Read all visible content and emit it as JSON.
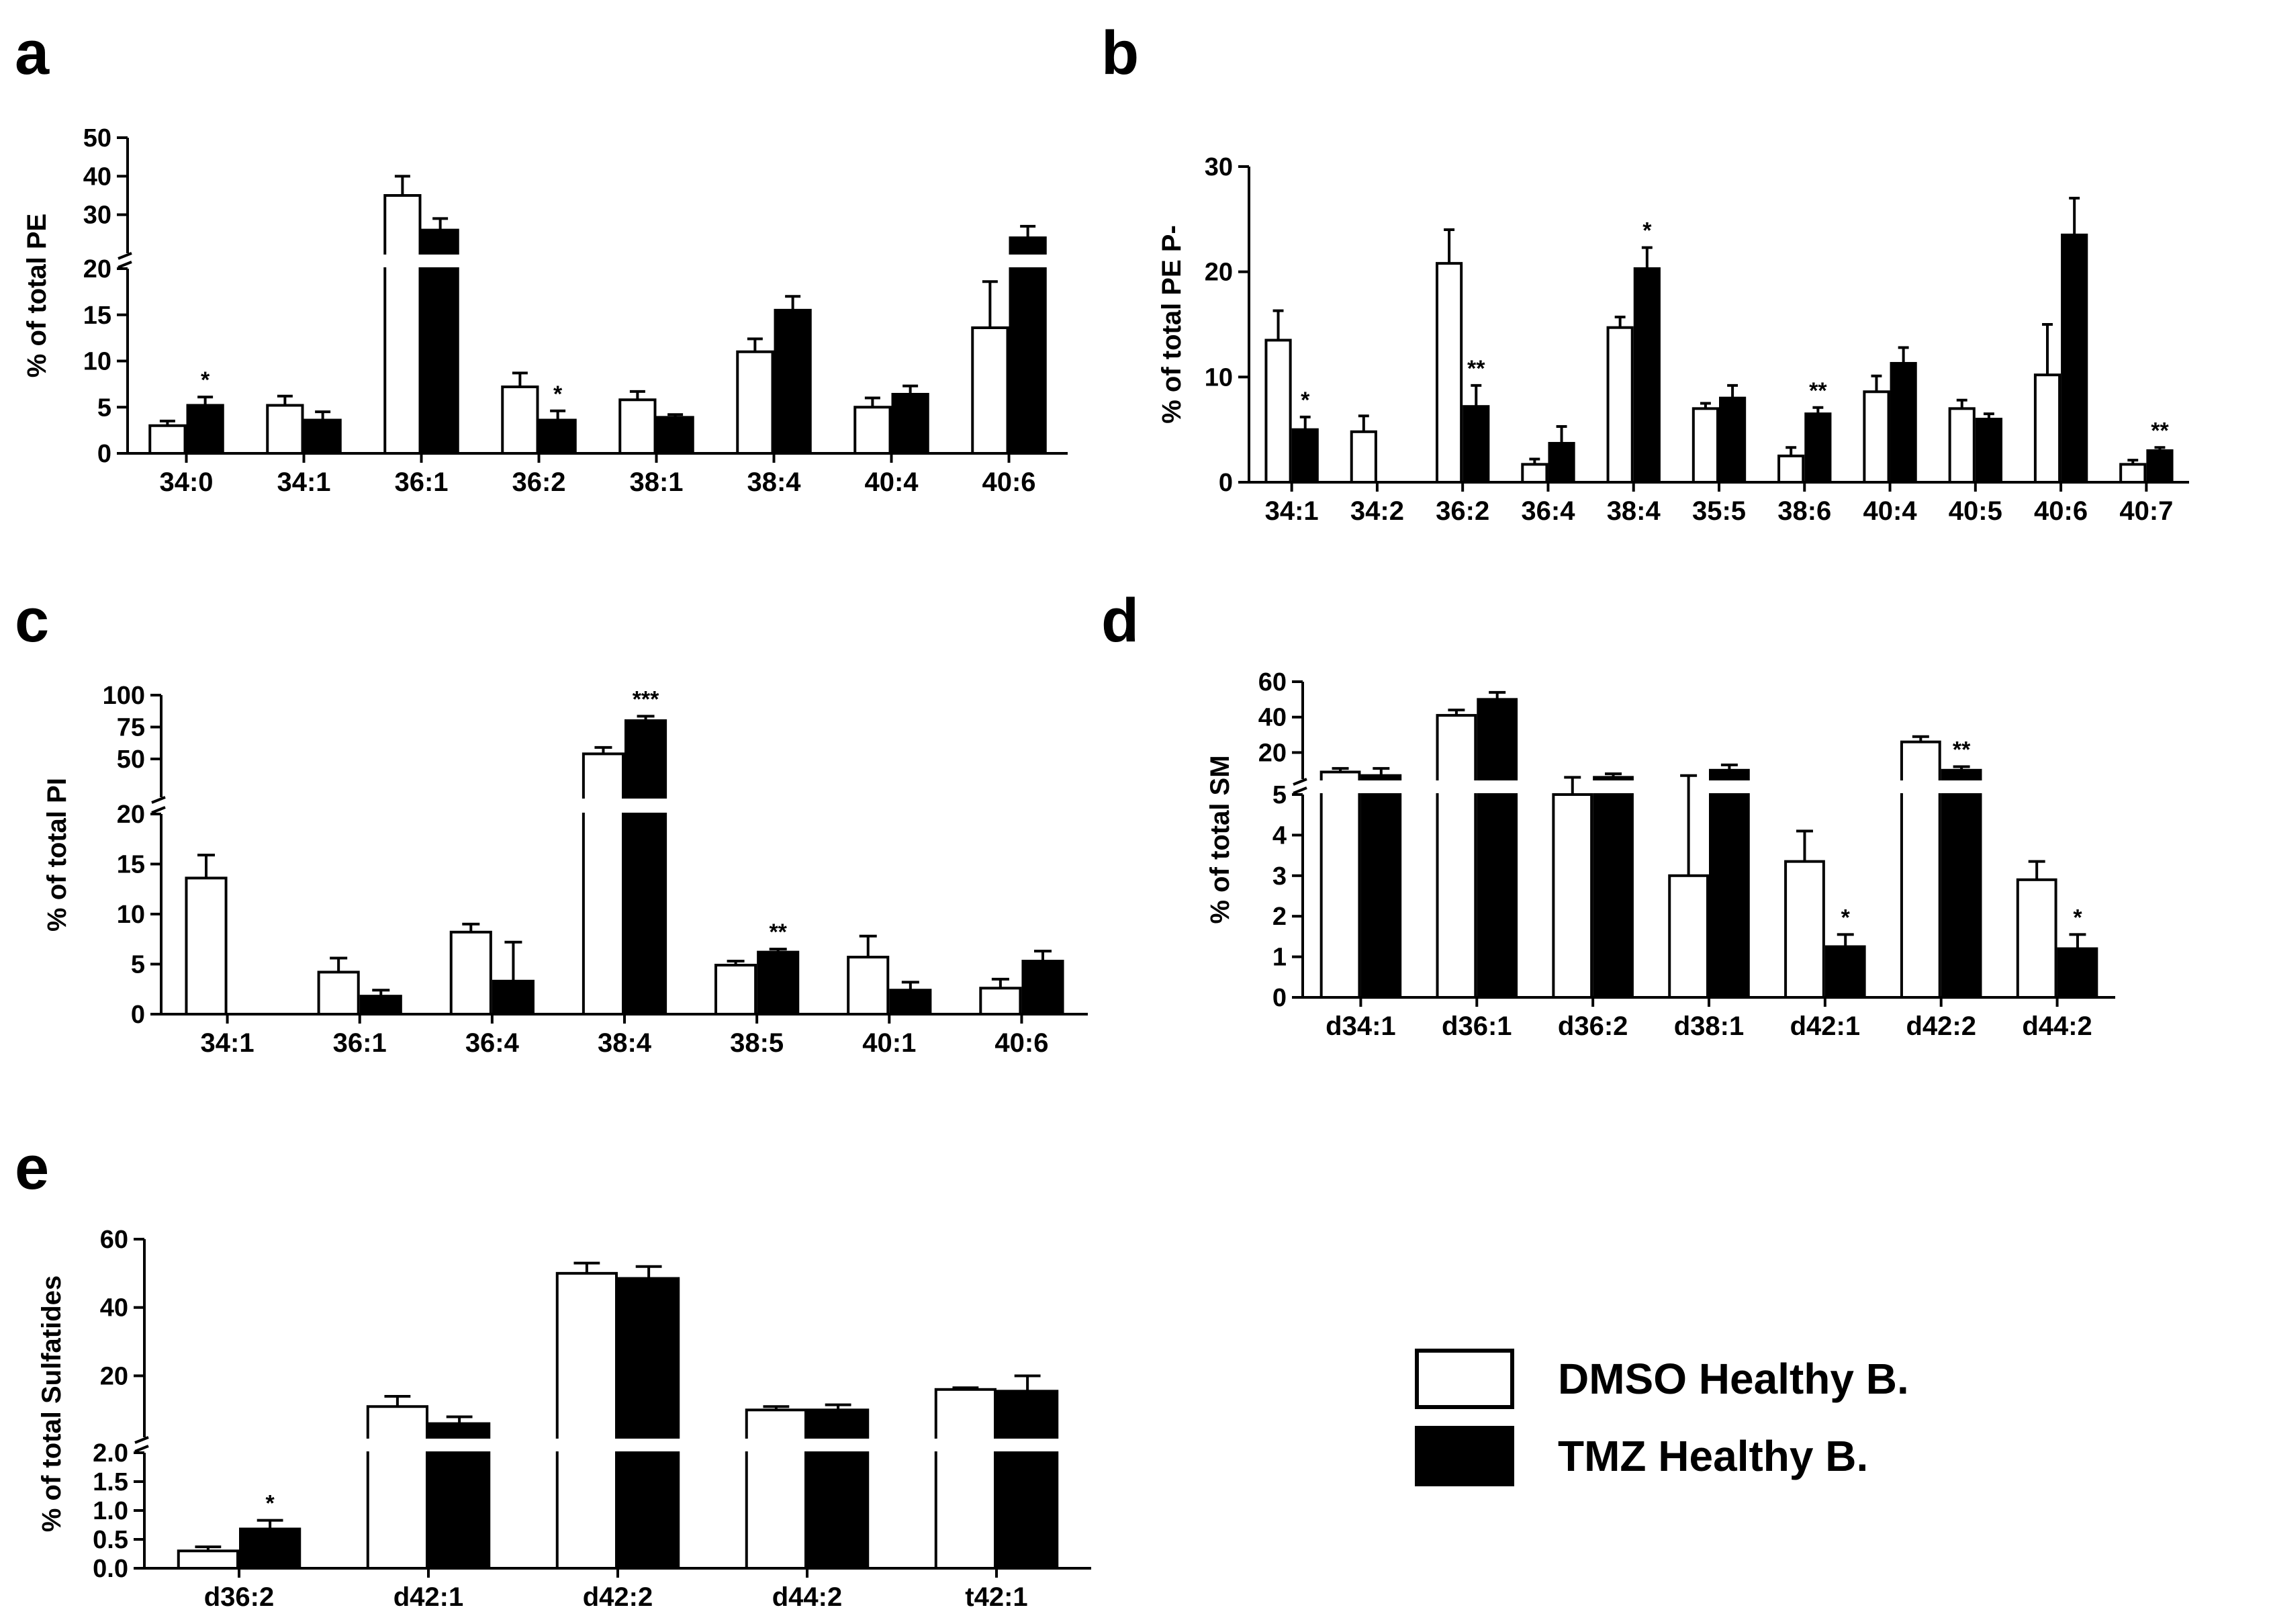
{
  "chart_data": [
    {
      "id": "a",
      "type": "bar",
      "panel_label": "a",
      "ylabel": "% of total PE",
      "categories": [
        "34:0",
        "34:1",
        "36:1",
        "36:2",
        "38:1",
        "38:4",
        "40:4",
        "40:6"
      ],
      "series": [
        {
          "name": "DMSO Healthy B.",
          "fill": "#ffffff",
          "values": [
            3.0,
            5.2,
            35.0,
            7.2,
            5.8,
            11.0,
            5.0,
            13.6
          ],
          "errors": [
            0.5,
            1.0,
            5.0,
            1.5,
            0.9,
            1.4,
            1.0,
            5.0
          ]
        },
        {
          "name": "TMZ Healthy B.",
          "fill": "#000000",
          "values": [
            5.2,
            3.6,
            26.0,
            3.6,
            3.9,
            15.5,
            6.4,
            24.0
          ],
          "errors": [
            0.9,
            0.9,
            3.0,
            1.0,
            0.3,
            1.5,
            0.9,
            3.0
          ]
        }
      ],
      "significance": [
        {
          "category": "34:0",
          "series": 1,
          "label": "*"
        },
        {
          "category": "36:2",
          "series": 1,
          "label": "*"
        }
      ],
      "broken_axis": true,
      "lower_range": [
        0,
        20
      ],
      "lower_ticks": [
        0,
        5,
        10,
        15,
        20
      ],
      "upper_range": [
        20,
        50
      ],
      "upper_ticks": [
        30,
        40,
        50
      ]
    },
    {
      "id": "b",
      "type": "bar",
      "panel_label": "b",
      "ylabel": "% of total PE P-",
      "categories": [
        "34:1",
        "34:2",
        "36:2",
        "36:4",
        "38:4",
        "35:5",
        "38:6",
        "40:4",
        "40:5",
        "40:6",
        "40:7"
      ],
      "series": [
        {
          "name": "DMSO Healthy B.",
          "fill": "#ffffff",
          "values": [
            13.5,
            4.8,
            20.8,
            1.7,
            14.7,
            7.0,
            2.5,
            8.6,
            7.0,
            10.2,
            1.7
          ],
          "errors": [
            2.8,
            1.5,
            3.2,
            0.5,
            1.0,
            0.5,
            0.8,
            1.5,
            0.8,
            4.8,
            0.4
          ]
        },
        {
          "name": "TMZ Healthy B.",
          "fill": "#000000",
          "values": [
            5.0,
            0,
            7.2,
            3.7,
            20.3,
            8.0,
            6.5,
            11.3,
            6.0,
            23.5,
            3.0
          ],
          "errors": [
            1.2,
            0,
            2.0,
            1.6,
            2.0,
            1.2,
            0.6,
            1.5,
            0.5,
            3.5,
            0.3
          ]
        }
      ],
      "significance": [
        {
          "category": "34:1",
          "series": 1,
          "label": "*"
        },
        {
          "category": "36:2",
          "series": 1,
          "label": "**"
        },
        {
          "category": "38:4",
          "series": 1,
          "label": "*"
        },
        {
          "category": "38:6",
          "series": 1,
          "label": "**"
        },
        {
          "category": "40:7",
          "series": 1,
          "label": "**"
        }
      ],
      "broken_axis": false,
      "ylim": [
        0,
        30
      ],
      "ticks": [
        0,
        10,
        20,
        30
      ]
    },
    {
      "id": "c",
      "type": "bar",
      "panel_label": "c",
      "ylabel": "% of total PI",
      "categories": [
        "34:1",
        "36:1",
        "36:4",
        "38:4",
        "38:5",
        "40:1",
        "40:6"
      ],
      "series": [
        {
          "name": "DMSO Healthy B.",
          "fill": "#ffffff",
          "values": [
            13.6,
            4.2,
            8.2,
            54.0,
            4.9,
            5.7,
            2.6
          ],
          "errors": [
            2.3,
            1.4,
            0.8,
            5.0,
            0.4,
            2.1,
            0.9
          ]
        },
        {
          "name": "TMZ Healthy B.",
          "fill": "#000000",
          "values": [
            0,
            1.8,
            3.3,
            80.0,
            6.2,
            2.4,
            5.3
          ],
          "errors": [
            0,
            0.6,
            3.9,
            3.5,
            0.3,
            0.8,
            1.0
          ]
        }
      ],
      "significance": [
        {
          "category": "38:4",
          "series": 1,
          "label": "***"
        },
        {
          "category": "38:5",
          "series": 1,
          "label": "**"
        }
      ],
      "broken_axis": true,
      "lower_range": [
        0,
        20
      ],
      "lower_ticks": [
        0,
        5,
        10,
        15,
        20
      ],
      "upper_range": [
        20,
        100
      ],
      "upper_ticks": [
        50,
        75,
        100
      ]
    },
    {
      "id": "d",
      "type": "bar",
      "panel_label": "d",
      "ylabel": "% of total SM",
      "categories": [
        "d34:1",
        "d36:1",
        "d36:2",
        "d38:1",
        "d42:1",
        "d42:2",
        "d44:2"
      ],
      "series": [
        {
          "name": "DMSO Healthy B.",
          "fill": "#ffffff",
          "values": [
            9.0,
            41.0,
            5.0,
            3.0,
            3.35,
            26.0,
            2.9
          ],
          "errors": [
            2.0,
            3.0,
            1.0,
            4.0,
            0.75,
            3.0,
            0.45
          ]
        },
        {
          "name": "TMZ Healthy B.",
          "fill": "#000000",
          "values": [
            7.0,
            50.0,
            6.0,
            10.0,
            1.25,
            10.0,
            1.2
          ],
          "errors": [
            4.0,
            4.0,
            2.0,
            3.0,
            0.3,
            2.0,
            0.35
          ]
        }
      ],
      "significance": [
        {
          "category": "d42:1",
          "series": 1,
          "label": "*"
        },
        {
          "category": "d42:2",
          "series": 1,
          "label": "**"
        },
        {
          "category": "d44:2",
          "series": 1,
          "label": "*"
        }
      ],
      "broken_axis": true,
      "lower_range": [
        0,
        5
      ],
      "lower_ticks": [
        0,
        1,
        2,
        3,
        4,
        5
      ],
      "upper_range": [
        5,
        60
      ],
      "upper_ticks": [
        20,
        40,
        60
      ]
    },
    {
      "id": "e",
      "type": "bar",
      "panel_label": "e",
      "ylabel": "% of total Sulfatides",
      "categories": [
        "d36:2",
        "d42:1",
        "d42:2",
        "d44:2",
        "t42:1"
      ],
      "series": [
        {
          "name": "DMSO Healthy B.",
          "fill": "#ffffff",
          "values": [
            0.3,
            11.0,
            50.0,
            10.0,
            16.0
          ],
          "errors": [
            0.07,
            3.0,
            3.0,
            1.0,
            0.5
          ]
        },
        {
          "name": "TMZ Healthy B.",
          "fill": "#000000",
          "values": [
            0.68,
            6.0,
            48.5,
            10.0,
            15.5
          ],
          "errors": [
            0.15,
            2.0,
            3.5,
            1.5,
            4.5
          ]
        }
      ],
      "significance": [
        {
          "category": "d36:2",
          "series": 1,
          "label": "*"
        }
      ],
      "broken_axis": true,
      "lower_range": [
        0,
        2.0
      ],
      "lower_ticks": [
        "0.0",
        "0.5",
        "1.0",
        "1.5",
        "2.0"
      ],
      "upper_range": [
        2.0,
        60
      ],
      "upper_ticks": [
        20,
        40,
        60
      ]
    }
  ],
  "legend": {
    "placement": "bottom-right",
    "items": [
      {
        "label": "DMSO Healthy B.",
        "fill": "#ffffff"
      },
      {
        "label": "TMZ Healthy B.",
        "fill": "#000000"
      }
    ]
  }
}
